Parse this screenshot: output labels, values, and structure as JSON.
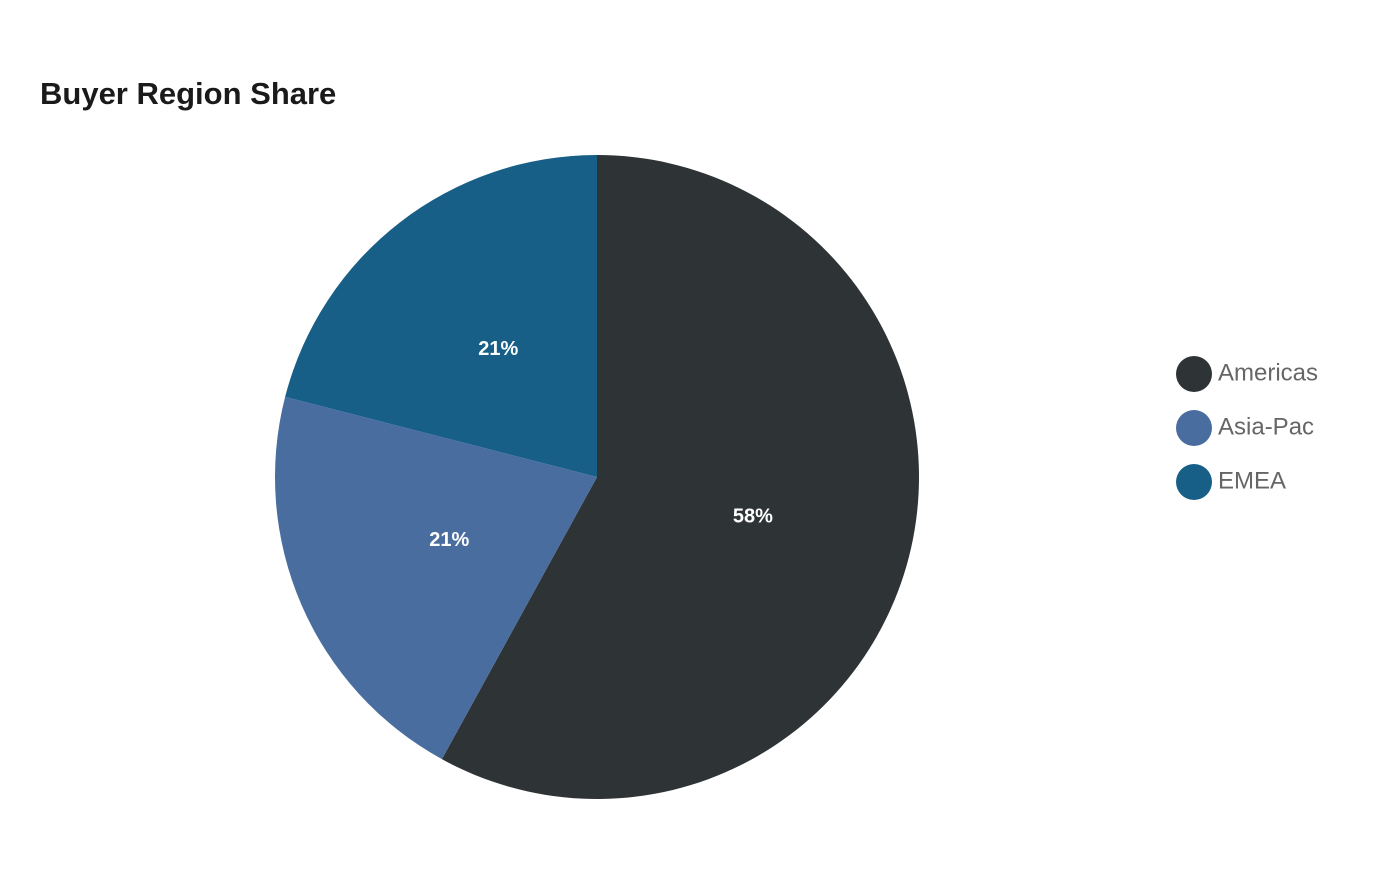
{
  "chart_data": {
    "type": "pie",
    "title": "Buyer Region Share",
    "categories": [
      "Americas",
      "Asia-Pac",
      "EMEA"
    ],
    "values": [
      58,
      21,
      21
    ],
    "value_labels": [
      "58%",
      "21%",
      "21%"
    ],
    "colors": [
      "#2e3436",
      "#4a6da0",
      "#175f87"
    ],
    "legend": "right"
  }
}
